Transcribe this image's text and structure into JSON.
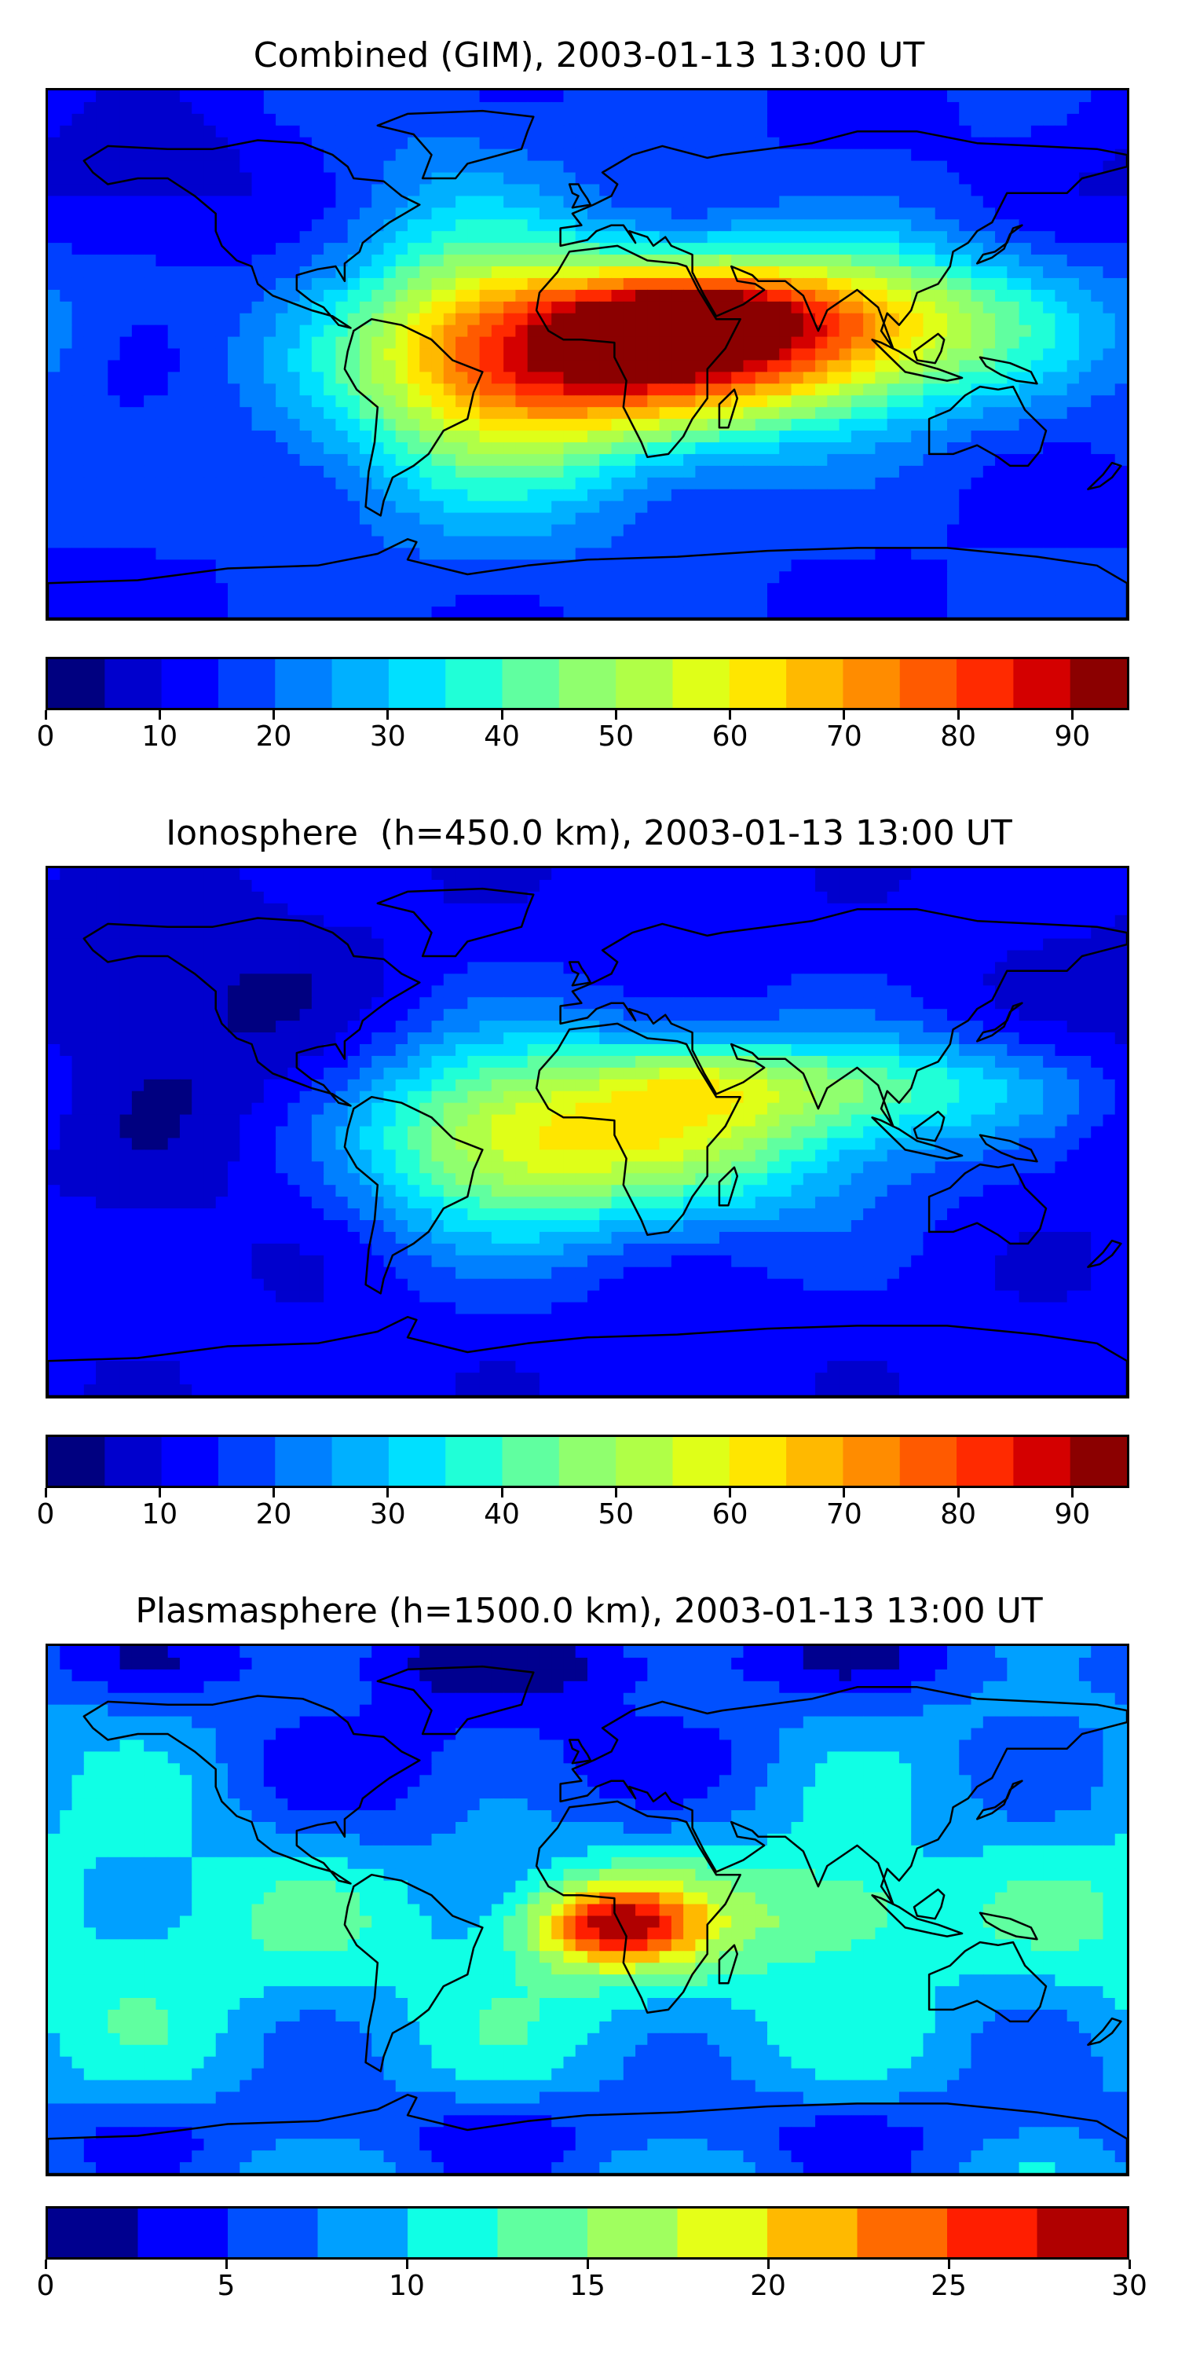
{
  "panels": [
    {
      "title": "Combined (GIM), 2003-01-13 13:00 UT",
      "colorbar": {
        "min": 0,
        "max": 95,
        "step": 5,
        "ticks": [
          0,
          10,
          20,
          30,
          40,
          50,
          60,
          70,
          80,
          90
        ],
        "tick_labels": [
          "0",
          "10",
          "20",
          "30",
          "40",
          "50",
          "60",
          "70",
          "80",
          "90"
        ]
      }
    },
    {
      "title": "Ionosphere  (h=450.0 km), 2003-01-13 13:00 UT",
      "colorbar": {
        "min": 0,
        "max": 95,
        "step": 5,
        "ticks": [
          0,
          10,
          20,
          30,
          40,
          50,
          60,
          70,
          80,
          90
        ],
        "tick_labels": [
          "0",
          "10",
          "20",
          "30",
          "40",
          "50",
          "60",
          "70",
          "80",
          "90"
        ]
      }
    },
    {
      "title": "Plasmasphere (h=1500.0 km), 2003-01-13 13:00 UT",
      "colorbar": {
        "min": 0,
        "max": 30,
        "step": 2.5,
        "ticks": [
          0,
          5,
          10,
          15,
          20,
          25,
          30
        ],
        "tick_labels": [
          "0",
          "5",
          "10",
          "15",
          "20",
          "25",
          "30"
        ]
      }
    }
  ],
  "chart_data": [
    {
      "type": "heatmap",
      "title": "Combined (GIM), 2003-01-13 13:00 UT",
      "xlim": [
        -180,
        180
      ],
      "ylim": [
        -90,
        90
      ],
      "background": 15,
      "blobs": [
        {
          "lon": 25,
          "lat": 2,
          "slon": 55,
          "slat": 20,
          "amp": 65
        },
        {
          "lon": 35,
          "lat": 16,
          "slon": 30,
          "slat": 10,
          "amp": 20
        },
        {
          "lon": -30,
          "lat": -15,
          "slon": 40,
          "slat": 30,
          "amp": 28
        },
        {
          "lon": 95,
          "lat": 12,
          "slon": 50,
          "slat": 18,
          "amp": 30
        },
        {
          "lon": -45,
          "lat": 30,
          "slon": 28,
          "slat": 35,
          "amp": 12
        },
        {
          "lon": -150,
          "lat": 60,
          "slon": 40,
          "slat": 20,
          "amp": -8
        }
      ],
      "colorbar": {
        "min": 0,
        "max": 95,
        "step": 5
      }
    },
    {
      "type": "heatmap",
      "title": "Ionosphere  (h=450.0 km), 2003-01-13 13:00 UT",
      "xlim": [
        -180,
        180
      ],
      "ylim": [
        -90,
        90
      ],
      "background": 12,
      "blobs": [
        {
          "lon": 15,
          "lat": 0,
          "slon": 55,
          "slat": 22,
          "amp": 42
        },
        {
          "lon": 35,
          "lat": 18,
          "slon": 22,
          "slat": 8,
          "amp": 10
        },
        {
          "lon": -35,
          "lat": -5,
          "slon": 30,
          "slat": 25,
          "amp": 18
        },
        {
          "lon": 100,
          "lat": 15,
          "slon": 45,
          "slat": 12,
          "amp": 22
        },
        {
          "lon": -130,
          "lat": 30,
          "slon": 45,
          "slat": 40,
          "amp": -8
        }
      ],
      "colorbar": {
        "min": 0,
        "max": 95,
        "step": 5
      }
    },
    {
      "type": "heatmap",
      "title": "Plasmasphere (h=1500.0 km), 2003-01-13 13:00 UT",
      "xlim": [
        -180,
        180
      ],
      "ylim": [
        -90,
        90
      ],
      "background": 8,
      "blobs": [
        {
          "lon": 8,
          "lat": -5,
          "slon": 20,
          "slat": 10,
          "amp": 16
        },
        {
          "lon": 20,
          "lat": -5,
          "slon": 65,
          "slat": 30,
          "amp": 5
        },
        {
          "lon": -150,
          "lat": -5,
          "slon": 50,
          "slat": 30,
          "amp": 4
        },
        {
          "lon": 85,
          "lat": 0,
          "slon": 20,
          "slat": 12,
          "amp": 6
        },
        {
          "lon": -30,
          "lat": 50,
          "slon": 60,
          "slat": 25,
          "amp": -5
        },
        {
          "lon": 0,
          "lat": 85,
          "slon": 180,
          "slat": 8,
          "amp": -4
        },
        {
          "lon": 0,
          "lat": -75,
          "slon": 180,
          "slat": 10,
          "amp": -3
        }
      ],
      "colorbar": {
        "min": 0,
        "max": 30,
        "step": 2.5
      }
    }
  ],
  "colormap": [
    "#000080",
    "#0000cd",
    "#0000ff",
    "#0040ff",
    "#0080ff",
    "#00b0ff",
    "#00e0ff",
    "#20ffd7",
    "#60ffa0",
    "#90ff6e",
    "#b0ff47",
    "#dfff18",
    "#ffe600",
    "#ffb900",
    "#ff8c00",
    "#ff5a00",
    "#ff2a00",
    "#d40000",
    "#8b0000"
  ],
  "colormap_plasma": [
    "#00008f",
    "#0000ff",
    "#0050ff",
    "#00a0ff",
    "#10ffe5",
    "#60ffa0",
    "#a0ff5f",
    "#e5ff18",
    "#ffb900",
    "#ff6a00",
    "#ff1e00",
    "#b00000"
  ],
  "land_color": "#000000"
}
